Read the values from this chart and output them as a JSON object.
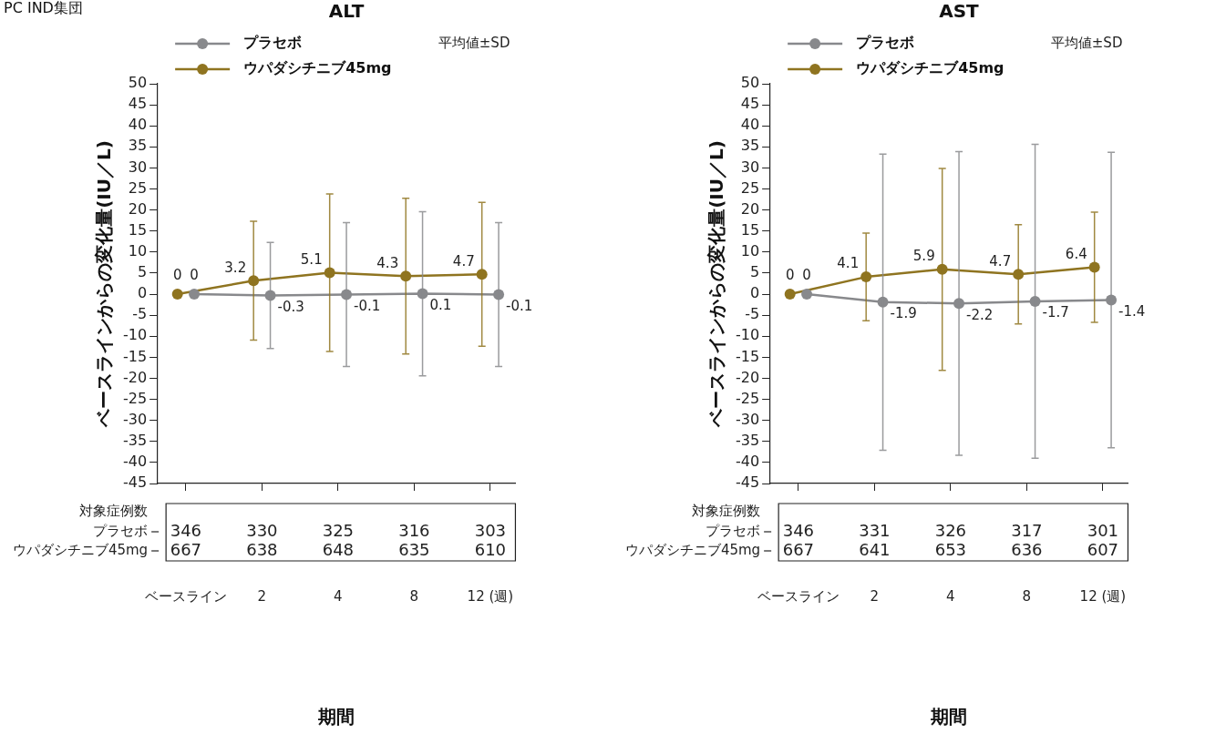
{
  "chart_data": [
    {
      "type": "line",
      "title": "ALT",
      "subtitle": "PC IND集団",
      "xlabel": "期間",
      "ylabel": "ベースラインからの変化量(IU／L)",
      "categories": [
        "ベースライン",
        "2",
        "4",
        "8",
        "12 (週)"
      ],
      "series": [
        {
          "name": "プラセボ",
          "color": "#88898c",
          "values": [
            0,
            -0.3,
            -0.1,
            0.1,
            -0.1
          ],
          "errors": [
            null,
            12.6,
            17.1,
            19.5,
            17.1
          ]
        },
        {
          "name": "ウパダシチニブ45mg",
          "color": "#8f7420",
          "values": [
            0,
            3.2,
            5.1,
            4.3,
            4.7
          ],
          "errors": [
            null,
            14.1,
            18.7,
            18.5,
            17.1
          ]
        }
      ],
      "ylim": [
        -45,
        50
      ],
      "yticks": [
        -45,
        -40,
        -35,
        -30,
        -25,
        -20,
        -15,
        -10,
        -5,
        0,
        5,
        10,
        15,
        20,
        25,
        30,
        35,
        40,
        45,
        50
      ],
      "grid": false,
      "legend": "top left",
      "marker": "circle",
      "line_style": "solid",
      "data_labels": true,
      "annotations": [
        "平均値±SD",
        "対象症例数",
        "346",
        "330",
        "325",
        "316",
        "303",
        "667",
        "638",
        "648",
        "635",
        "610"
      ]
    },
    {
      "type": "line",
      "title": "AST",
      "xlabel": "期間",
      "ylabel": "ベースラインからの変化量(IU／L)",
      "categories": [
        "ベースライン",
        "2",
        "4",
        "8",
        "12 (週)"
      ],
      "series": [
        {
          "name": "プラセボ",
          "color": "#88898c",
          "values": [
            0,
            -1.9,
            -2.2,
            -1.7,
            -1.4
          ],
          "errors": [
            null,
            35.2,
            36.1,
            37.3,
            35.1
          ]
        },
        {
          "name": "ウパダシチニブ45mg",
          "color": "#8f7420",
          "values": [
            0,
            4.1,
            5.9,
            4.7,
            6.4
          ],
          "errors": [
            null,
            10.4,
            24.0,
            11.8,
            13.1
          ]
        }
      ],
      "ylim": [
        -45,
        50
      ],
      "yticks": [
        -45,
        -40,
        -35,
        -30,
        -25,
        -20,
        -15,
        -10,
        -5,
        0,
        5,
        10,
        15,
        20,
        25,
        30,
        35,
        40,
        45,
        50
      ],
      "grid": false,
      "legend": "top left",
      "marker": "circle",
      "line_style": "solid",
      "data_labels": true,
      "annotations": [
        "平均値±SD",
        "対象症例数",
        "346",
        "331",
        "326",
        "317",
        "301",
        "667",
        "641",
        "653",
        "636",
        "607"
      ]
    }
  ]
}
